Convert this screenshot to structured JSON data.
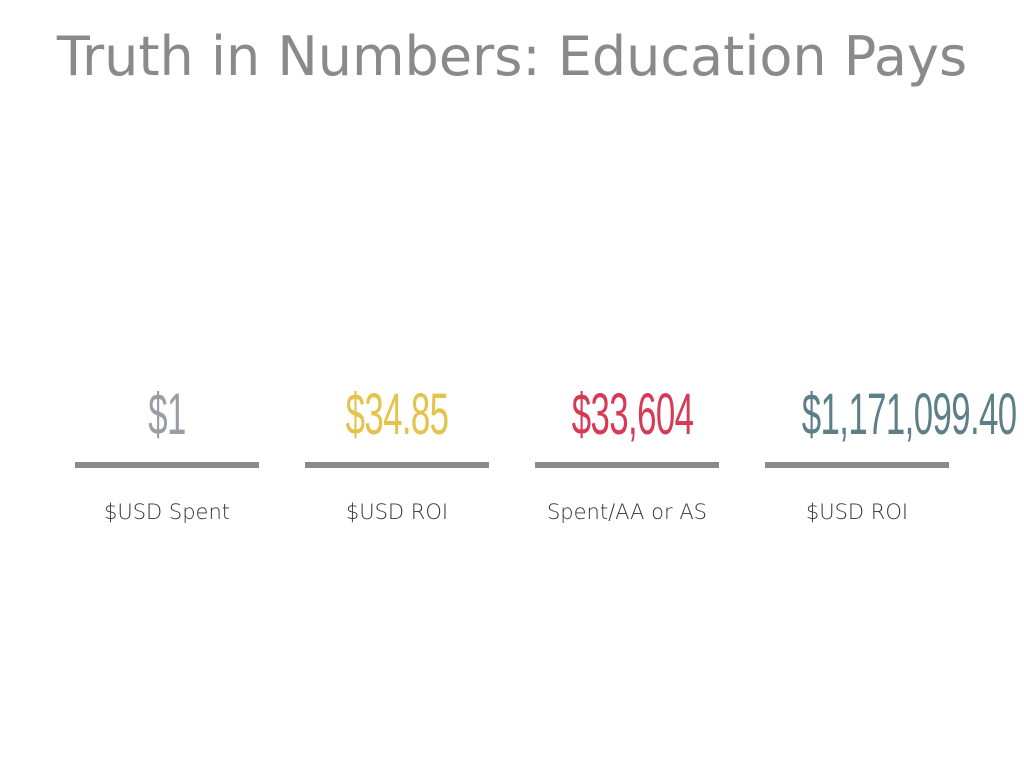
{
  "slide": {
    "title": "Truth in Numbers: Education Pays"
  },
  "stats": [
    {
      "value": "$1",
      "label": "$USD Spent",
      "color": "#9a9da3"
    },
    {
      "value": "$34.85",
      "label": "$USD ROI",
      "color": "#e4c34a"
    },
    {
      "value": "$33,604",
      "label": "Spent/AA or AS",
      "color": "#d73a55"
    },
    {
      "value": "$1,171,099.40",
      "label": "$USD ROI",
      "color": "#5e7f88"
    }
  ],
  "colors": {
    "title": "#8a8a8a",
    "rule": "#8a8a8a",
    "label": "#333333"
  }
}
